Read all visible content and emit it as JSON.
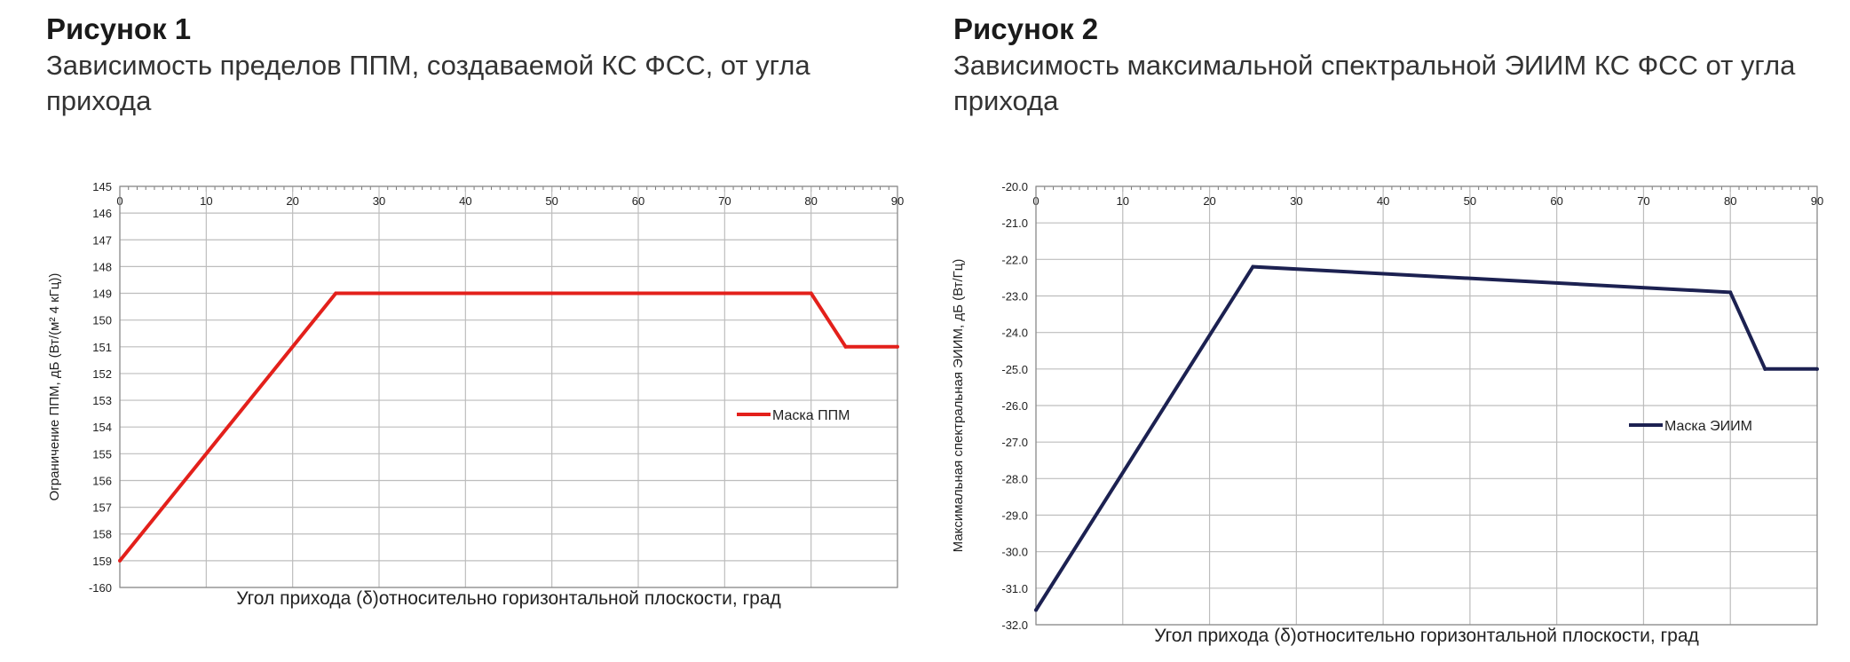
{
  "figures": [
    {
      "title": "Рисунок 1",
      "caption": "Зависимость пределов ППМ, создаваемой КС ФСС, от угла прихода"
    },
    {
      "title": "Рисунок 2",
      "caption": "Зависимость максимальной спектральной ЭИИМ КС ФСС от угла прихода"
    }
  ],
  "chart_data": [
    {
      "type": "line",
      "xlabel": "Угол прихода (δ)относительно горизонтальной плоскости, град",
      "ylabel": "Ограничение ППМ, дБ (Вт/(м² 4 кГц))",
      "xlim": [
        0,
        90
      ],
      "ylim": [
        -160,
        -145
      ],
      "y_inverted": true,
      "x_ticks": [
        0,
        10,
        20,
        30,
        40,
        50,
        60,
        70,
        80,
        90
      ],
      "x_tick_labels": [
        "0",
        "10",
        "20",
        "30",
        "40",
        "50",
        "60",
        "70",
        "80",
        "90"
      ],
      "y_ticks": [
        -145,
        -146,
        -147,
        -148,
        -149,
        -150,
        -151,
        -152,
        -153,
        -154,
        -155,
        -156,
        -157,
        -158,
        -159,
        -160
      ],
      "y_tick_labels": [
        "145",
        "146",
        "147",
        "148",
        "149",
        "150",
        "151",
        "152",
        "153",
        "154",
        "155",
        "156",
        "157",
        "158",
        "159",
        "-160"
      ],
      "grid": true,
      "legend_position": "right",
      "series": [
        {
          "name": "Маска ППМ",
          "color": "#e3201b",
          "x": [
            0,
            25,
            80,
            84,
            90
          ],
          "y": [
            -159,
            -149,
            -149,
            -151,
            -151
          ]
        }
      ]
    },
    {
      "type": "line",
      "xlabel": "Угол прихода (δ)относительно горизонтальной плоскости, град",
      "ylabel": "Максимальная спектральная ЭИИМ, дБ (Вт/Гц)",
      "xlim": [
        0,
        90
      ],
      "ylim": [
        -32.0,
        -20.0
      ],
      "y_inverted": false,
      "x_ticks": [
        0,
        10,
        20,
        30,
        40,
        50,
        60,
        70,
        80,
        90
      ],
      "x_tick_labels": [
        "0",
        "10",
        "20",
        "30",
        "40",
        "50",
        "60",
        "70",
        "80",
        "90"
      ],
      "y_ticks": [
        -20.0,
        -21.0,
        -22.0,
        -23.0,
        -24.0,
        -25.0,
        -26.0,
        -27.0,
        -28.0,
        -29.0,
        -30.0,
        -31.0,
        -32.0
      ],
      "y_tick_labels": [
        "-20.0",
        "-21.0",
        "-22.0",
        "-23.0",
        "-24.0",
        "-25.0",
        "-26.0",
        "-27.0",
        "-28.0",
        "-29.0",
        "-30.0",
        "-31.0",
        "-32.0"
      ],
      "grid": true,
      "legend_position": "right",
      "series": [
        {
          "name": "Маска ЭИИМ",
          "color": "#1c2151",
          "x": [
            0,
            25,
            80,
            84,
            90
          ],
          "y": [
            -31.6,
            -22.2,
            -22.9,
            -25.0,
            -25.0
          ]
        }
      ]
    }
  ]
}
